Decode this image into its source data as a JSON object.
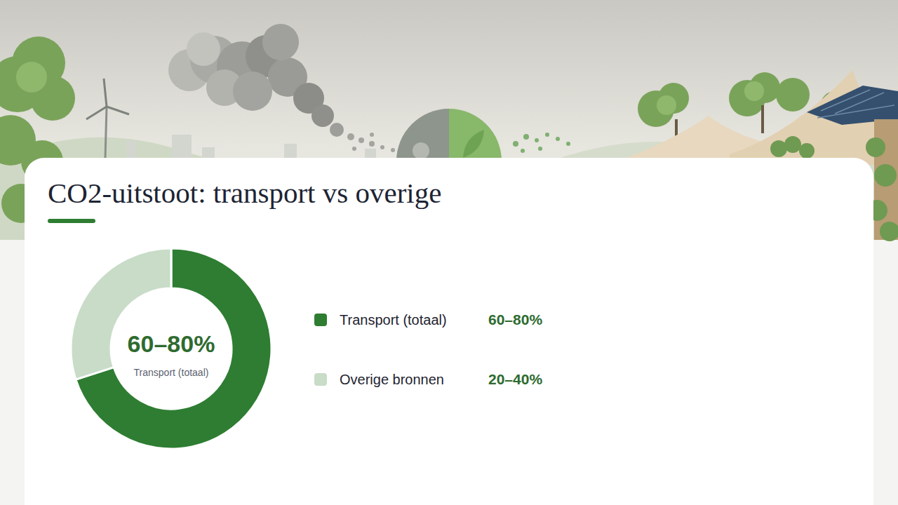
{
  "chart_data": {
    "type": "donut",
    "title": "CO2-uitstoot: transport vs overige",
    "categories": [
      "Transport (totaal)",
      "Overige bronnen"
    ],
    "values": [
      70,
      30
    ],
    "value_labels": [
      "60–80%",
      "20–40%"
    ],
    "ranges": [
      [
        60,
        80
      ],
      [
        20,
        40
      ]
    ],
    "colors": [
      "#2e7d32",
      "#c8dcc8"
    ],
    "legend": "right",
    "data_labels": true
  }
}
